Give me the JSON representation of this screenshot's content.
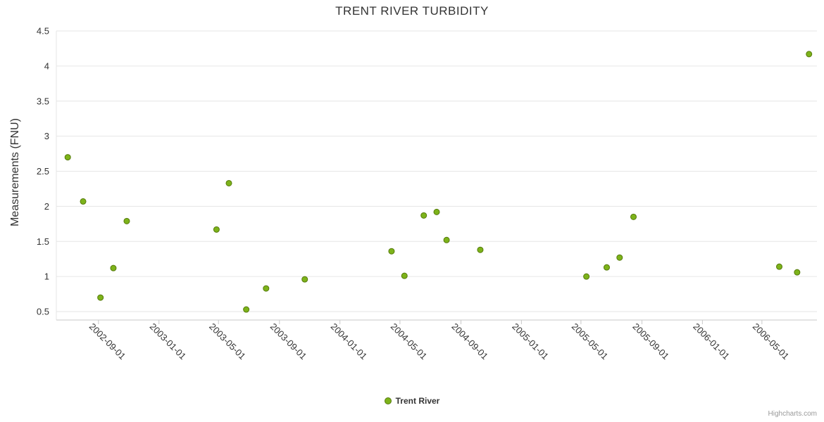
{
  "chart": {
    "title": "TRENT RIVER TURBIDITY",
    "credits": "Highcharts.com"
  },
  "chart_data": {
    "type": "scatter",
    "title": "TRENT RIVER TURBIDITY",
    "xlabel": "",
    "ylabel": "Measurements (FNU)",
    "legend": [
      "Trent River"
    ],
    "legend_position": "bottom-center",
    "grid": "horizontal-only",
    "x_axis_type": "datetime",
    "x_ticks": [
      "2002-09-01",
      "2003-01-01",
      "2003-05-01",
      "2003-09-01",
      "2004-01-01",
      "2004-05-01",
      "2004-09-01",
      "2005-01-01",
      "2005-05-01",
      "2005-09-01",
      "2006-01-01",
      "2006-05-01"
    ],
    "y_ticks": [
      0.5,
      1,
      1.5,
      2,
      2.5,
      3,
      3.5,
      4,
      4.5
    ],
    "xlim": [
      "2002-06-08",
      "2006-08-20"
    ],
    "ylim": [
      0.38,
      4.5
    ],
    "series": [
      {
        "name": "Trent River",
        "color": "#7db31a",
        "marker_stroke": "#557a0b",
        "data": [
          [
            "2002-07-01",
            2.7
          ],
          [
            "2002-08-01",
            2.07
          ],
          [
            "2002-09-05",
            0.7
          ],
          [
            "2002-10-01",
            1.12
          ],
          [
            "2002-10-28",
            1.79
          ],
          [
            "2003-04-27",
            1.67
          ],
          [
            "2003-05-22",
            2.33
          ],
          [
            "2003-06-26",
            0.53
          ],
          [
            "2003-08-05",
            0.83
          ],
          [
            "2003-10-22",
            0.96
          ],
          [
            "2004-04-14",
            1.36
          ],
          [
            "2004-05-10",
            1.01
          ],
          [
            "2004-06-18",
            1.87
          ],
          [
            "2004-07-14",
            1.92
          ],
          [
            "2004-08-03",
            1.52
          ],
          [
            "2004-10-10",
            1.38
          ],
          [
            "2005-05-12",
            1.0
          ],
          [
            "2005-06-22",
            1.13
          ],
          [
            "2005-07-18",
            1.27
          ],
          [
            "2005-08-15",
            1.85
          ],
          [
            "2006-06-05",
            1.14
          ],
          [
            "2006-07-11",
            1.06
          ],
          [
            "2006-08-04",
            4.17
          ]
        ]
      }
    ]
  }
}
